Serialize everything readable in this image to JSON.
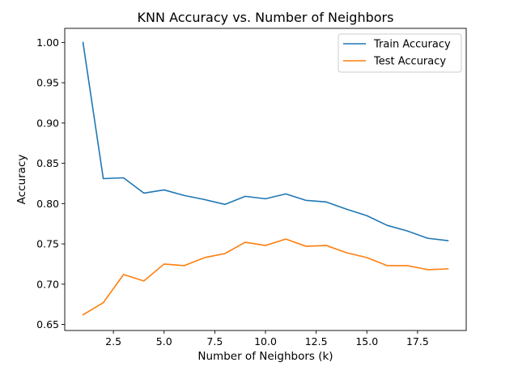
{
  "chart_data": {
    "type": "line",
    "title": "KNN Accuracy vs. Number of Neighbors",
    "xlabel": "Number of Neighbors (k)",
    "ylabel": "Accuracy",
    "x": [
      1,
      2,
      3,
      4,
      5,
      6,
      7,
      8,
      9,
      10,
      11,
      12,
      13,
      14,
      15,
      16,
      17,
      18,
      19
    ],
    "xlim": [
      0.1,
      19.9
    ],
    "ylim": [
      0.6425,
      1.0175
    ],
    "xticks": [
      2.5,
      5.0,
      7.5,
      10.0,
      12.5,
      15.0,
      17.5
    ],
    "xtick_labels": [
      "2.5",
      "5.0",
      "7.5",
      "10.0",
      "12.5",
      "15.0",
      "17.5"
    ],
    "yticks": [
      0.65,
      0.7,
      0.75,
      0.8,
      0.85,
      0.9,
      0.95,
      1.0
    ],
    "ytick_labels": [
      "0.65",
      "0.70",
      "0.75",
      "0.80",
      "0.85",
      "0.90",
      "0.95",
      "1.00"
    ],
    "grid": false,
    "legend_position": "top-right",
    "series": [
      {
        "name": "Train Accuracy",
        "color": "#1f77b4",
        "values": [
          1.0,
          0.831,
          0.832,
          0.813,
          0.817,
          0.81,
          0.805,
          0.799,
          0.809,
          0.806,
          0.812,
          0.804,
          0.802,
          0.793,
          0.785,
          0.773,
          0.766,
          0.757,
          0.754
        ]
      },
      {
        "name": "Test Accuracy",
        "color": "#ff7f0e",
        "values": [
          0.662,
          0.677,
          0.712,
          0.704,
          0.725,
          0.723,
          0.733,
          0.738,
          0.752,
          0.748,
          0.756,
          0.747,
          0.748,
          0.739,
          0.733,
          0.723,
          0.723,
          0.718,
          0.719
        ]
      }
    ]
  }
}
